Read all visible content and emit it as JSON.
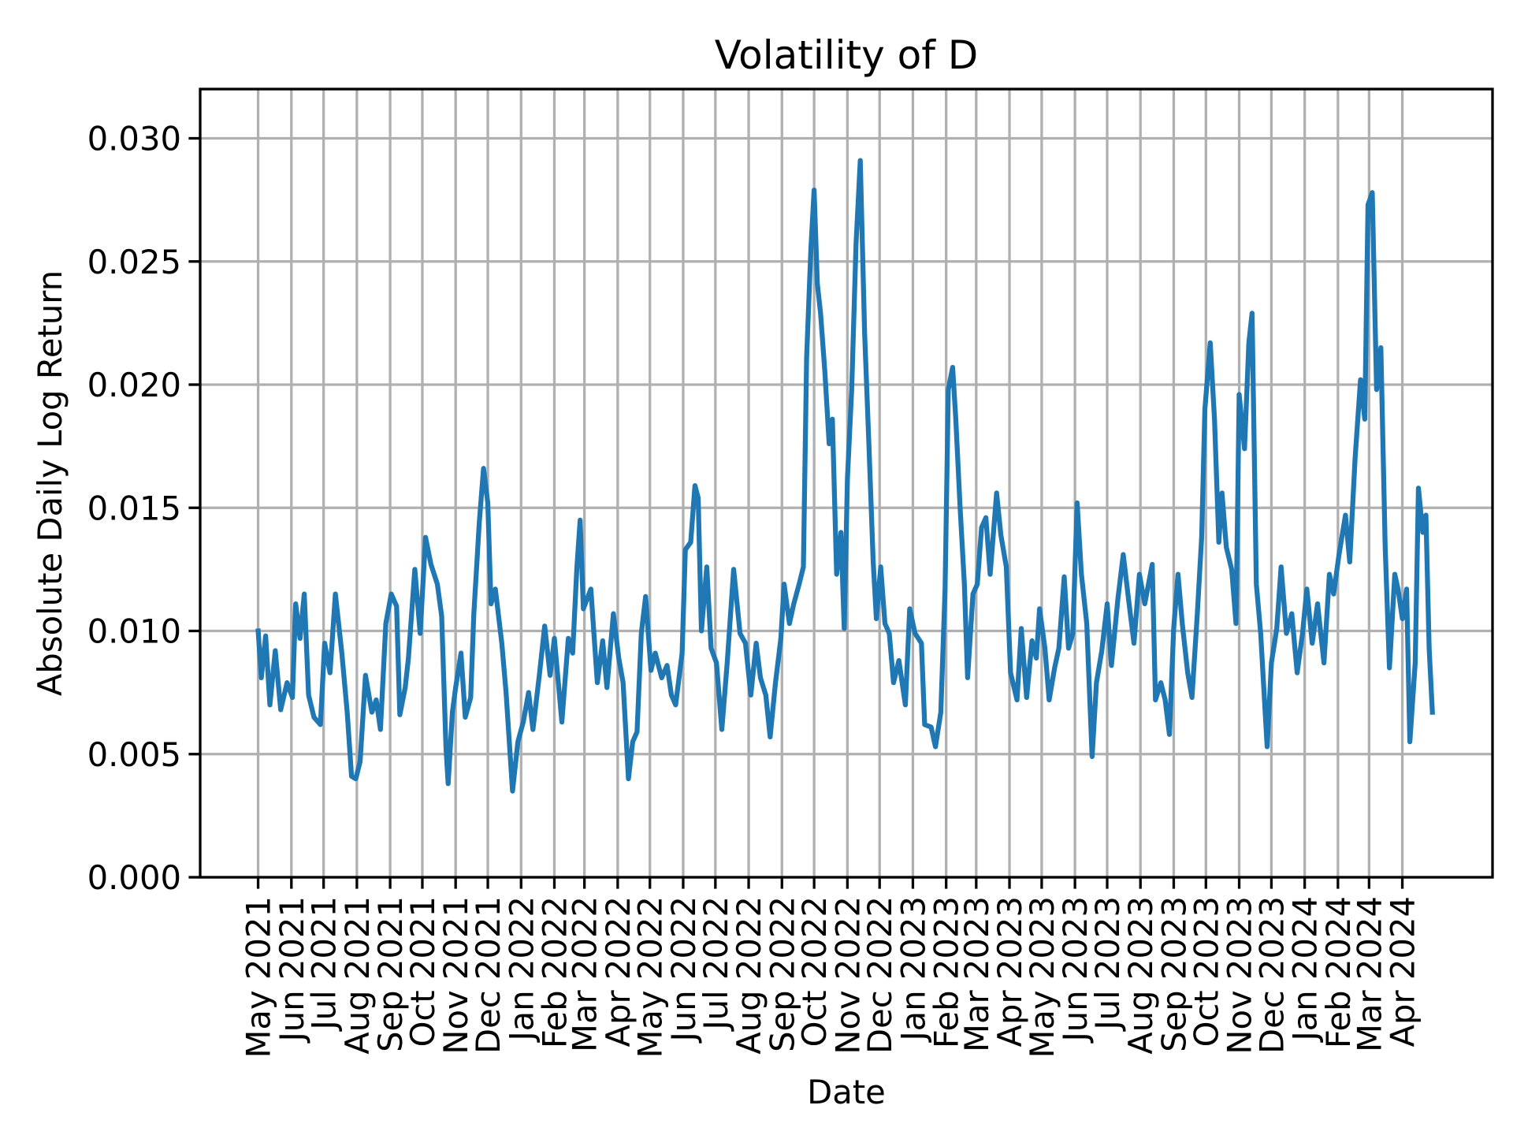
{
  "chart_data": {
    "type": "line",
    "title": "Volatility of D",
    "xlabel": "Date",
    "ylabel": "Absolute Daily Log Return",
    "xlim": [
      "2021-03-08",
      "2024-06-24"
    ],
    "ylim": [
      0,
      0.032
    ],
    "yticks": [
      0,
      0.005,
      0.01,
      0.015,
      0.02,
      0.025,
      0.03
    ],
    "ytick_labels": [
      "0.000",
      "0.005",
      "0.010",
      "0.015",
      "0.020",
      "0.025",
      "0.030"
    ],
    "xticks": [
      "2021-05-01",
      "2021-06-01",
      "2021-07-01",
      "2021-08-01",
      "2021-09-01",
      "2021-10-01",
      "2021-11-01",
      "2021-12-01",
      "2022-01-01",
      "2022-02-01",
      "2022-03-01",
      "2022-04-01",
      "2022-05-01",
      "2022-06-01",
      "2022-07-01",
      "2022-08-01",
      "2022-09-01",
      "2022-10-01",
      "2022-11-01",
      "2022-12-01",
      "2023-01-01",
      "2023-02-01",
      "2023-03-01",
      "2023-04-01",
      "2023-05-01",
      "2023-06-01",
      "2023-07-01",
      "2023-08-01",
      "2023-09-01",
      "2023-10-01",
      "2023-11-01",
      "2023-12-01",
      "2024-01-01",
      "2024-02-01",
      "2024-03-01",
      "2024-04-01"
    ],
    "xtick_labels": [
      "May 2021",
      "Jun 2021",
      "Jul 2021",
      "Aug 2021",
      "Sep 2021",
      "Oct 2021",
      "Nov 2021",
      "Dec 2021",
      "Jan 2022",
      "Feb 2022",
      "Mar 2022",
      "Apr 2022",
      "May 2022",
      "Jun 2022",
      "Jul 2022",
      "Aug 2022",
      "Sep 2022",
      "Oct 2022",
      "Nov 2022",
      "Dec 2022",
      "Jan 2023",
      "Feb 2023",
      "Mar 2023",
      "Apr 2023",
      "May 2023",
      "Jun 2023",
      "Jul 2023",
      "Aug 2023",
      "Sep 2023",
      "Oct 2023",
      "Nov 2023",
      "Dec 2023",
      "Jan 2024",
      "Feb 2024",
      "Mar 2024",
      "Apr 2024"
    ],
    "grid": true,
    "line_color": "#1f77b4",
    "grid_color": "#b0b0b0",
    "series": [
      {
        "points": [
          [
            "2021-05-01",
            0.01
          ],
          [
            "2021-05-04",
            0.0081
          ],
          [
            "2021-05-08",
            0.0098
          ],
          [
            "2021-05-12",
            0.007
          ],
          [
            "2021-05-17",
            0.0092
          ],
          [
            "2021-05-22",
            0.0068
          ],
          [
            "2021-05-28",
            0.0079
          ],
          [
            "2021-06-02",
            0.0073
          ],
          [
            "2021-06-05",
            0.0111
          ],
          [
            "2021-06-09",
            0.0097
          ],
          [
            "2021-06-13",
            0.0115
          ],
          [
            "2021-06-17",
            0.0074
          ],
          [
            "2021-06-22",
            0.0065
          ],
          [
            "2021-06-28",
            0.0062
          ],
          [
            "2021-07-02",
            0.0095
          ],
          [
            "2021-07-07",
            0.0083
          ],
          [
            "2021-07-12",
            0.0115
          ],
          [
            "2021-07-18",
            0.0091
          ],
          [
            "2021-07-23",
            0.0067
          ],
          [
            "2021-07-27",
            0.0041
          ],
          [
            "2021-07-31",
            0.004
          ],
          [
            "2021-08-04",
            0.0047
          ],
          [
            "2021-08-09",
            0.0082
          ],
          [
            "2021-08-15",
            0.0067
          ],
          [
            "2021-08-19",
            0.0072
          ],
          [
            "2021-08-23",
            0.006
          ],
          [
            "2021-08-28",
            0.0103
          ],
          [
            "2021-09-02",
            0.0115
          ],
          [
            "2021-09-07",
            0.011
          ],
          [
            "2021-09-10",
            0.0066
          ],
          [
            "2021-09-15",
            0.0077
          ],
          [
            "2021-09-18",
            0.0089
          ],
          [
            "2021-09-24",
            0.0125
          ],
          [
            "2021-09-29",
            0.0099
          ],
          [
            "2021-10-04",
            0.0138
          ],
          [
            "2021-10-09",
            0.0127
          ],
          [
            "2021-10-15",
            0.0119
          ],
          [
            "2021-10-19",
            0.0106
          ],
          [
            "2021-10-23",
            0.0053
          ],
          [
            "2021-10-25",
            0.0038
          ],
          [
            "2021-10-29",
            0.0067
          ],
          [
            "2021-11-01",
            0.0077
          ],
          [
            "2021-11-06",
            0.0091
          ],
          [
            "2021-11-10",
            0.0065
          ],
          [
            "2021-11-15",
            0.0073
          ],
          [
            "2021-11-18",
            0.0107
          ],
          [
            "2021-11-23",
            0.0144
          ],
          [
            "2021-11-27",
            0.0166
          ],
          [
            "2021-12-01",
            0.0152
          ],
          [
            "2021-12-04",
            0.0111
          ],
          [
            "2021-12-08",
            0.0117
          ],
          [
            "2021-12-14",
            0.0095
          ],
          [
            "2021-12-18",
            0.0075
          ],
          [
            "2021-12-24",
            0.0035
          ],
          [
            "2021-12-29",
            0.0055
          ],
          [
            "2022-01-03",
            0.0063
          ],
          [
            "2022-01-08",
            0.0075
          ],
          [
            "2022-01-12",
            0.006
          ],
          [
            "2022-01-18",
            0.0082
          ],
          [
            "2022-01-23",
            0.0102
          ],
          [
            "2022-01-28",
            0.0082
          ],
          [
            "2022-02-01",
            0.0097
          ],
          [
            "2022-02-08",
            0.0063
          ],
          [
            "2022-02-14",
            0.0097
          ],
          [
            "2022-02-18",
            0.0091
          ],
          [
            "2022-02-22",
            0.0126
          ],
          [
            "2022-02-25",
            0.0145
          ],
          [
            "2022-02-28",
            0.0109
          ],
          [
            "2022-03-07",
            0.0117
          ],
          [
            "2022-03-13",
            0.0079
          ],
          [
            "2022-03-18",
            0.0096
          ],
          [
            "2022-03-22",
            0.0077
          ],
          [
            "2022-03-28",
            0.0107
          ],
          [
            "2022-04-02",
            0.0089
          ],
          [
            "2022-04-06",
            0.0079
          ],
          [
            "2022-04-11",
            0.004
          ],
          [
            "2022-04-15",
            0.0055
          ],
          [
            "2022-04-19",
            0.0059
          ],
          [
            "2022-04-23",
            0.0099
          ],
          [
            "2022-04-27",
            0.0114
          ],
          [
            "2022-05-02",
            0.0084
          ],
          [
            "2022-05-06",
            0.0091
          ],
          [
            "2022-05-12",
            0.0081
          ],
          [
            "2022-05-17",
            0.0086
          ],
          [
            "2022-05-21",
            0.0074
          ],
          [
            "2022-05-25",
            0.007
          ],
          [
            "2022-05-31",
            0.0091
          ],
          [
            "2022-06-03",
            0.0133
          ],
          [
            "2022-06-08",
            0.0136
          ],
          [
            "2022-06-12",
            0.0159
          ],
          [
            "2022-06-15",
            0.0154
          ],
          [
            "2022-06-18",
            0.01
          ],
          [
            "2022-06-23",
            0.0126
          ],
          [
            "2022-06-27",
            0.0093
          ],
          [
            "2022-07-02",
            0.0087
          ],
          [
            "2022-07-07",
            0.006
          ],
          [
            "2022-07-12",
            0.0087
          ],
          [
            "2022-07-18",
            0.0125
          ],
          [
            "2022-07-24",
            0.0099
          ],
          [
            "2022-07-29",
            0.0095
          ],
          [
            "2022-08-03",
            0.0074
          ],
          [
            "2022-08-08",
            0.0095
          ],
          [
            "2022-08-12",
            0.0081
          ],
          [
            "2022-08-17",
            0.0074
          ],
          [
            "2022-08-21",
            0.0057
          ],
          [
            "2022-08-26",
            0.0079
          ],
          [
            "2022-08-31",
            0.0097
          ],
          [
            "2022-09-03",
            0.0119
          ],
          [
            "2022-09-08",
            0.0103
          ],
          [
            "2022-09-12",
            0.0111
          ],
          [
            "2022-09-17",
            0.0119
          ],
          [
            "2022-09-21",
            0.0126
          ],
          [
            "2022-09-24",
            0.0211
          ],
          [
            "2022-09-28",
            0.0255
          ],
          [
            "2022-10-01",
            0.0279
          ],
          [
            "2022-10-04",
            0.0241
          ],
          [
            "2022-10-07",
            0.0229
          ],
          [
            "2022-10-11",
            0.0205
          ],
          [
            "2022-10-15",
            0.0176
          ],
          [
            "2022-10-18",
            0.0186
          ],
          [
            "2022-10-22",
            0.0123
          ],
          [
            "2022-10-26",
            0.014
          ],
          [
            "2022-10-29",
            0.0101
          ],
          [
            "2022-11-01",
            0.0162
          ],
          [
            "2022-11-05",
            0.0198
          ],
          [
            "2022-11-09",
            0.0257
          ],
          [
            "2022-11-13",
            0.0291
          ],
          [
            "2022-11-17",
            0.0221
          ],
          [
            "2022-11-21",
            0.0176
          ],
          [
            "2022-11-25",
            0.0128
          ],
          [
            "2022-11-28",
            0.0105
          ],
          [
            "2022-12-02",
            0.0126
          ],
          [
            "2022-12-06",
            0.0103
          ],
          [
            "2022-12-10",
            0.0099
          ],
          [
            "2022-12-14",
            0.0079
          ],
          [
            "2022-12-19",
            0.0088
          ],
          [
            "2022-12-25",
            0.007
          ],
          [
            "2022-12-29",
            0.0109
          ],
          [
            "2023-01-03",
            0.0099
          ],
          [
            "2023-01-09",
            0.0095
          ],
          [
            "2023-01-12",
            0.0062
          ],
          [
            "2023-01-18",
            0.0061
          ],
          [
            "2023-01-22",
            0.0053
          ],
          [
            "2023-01-27",
            0.0067
          ],
          [
            "2023-01-31",
            0.0117
          ],
          [
            "2023-02-03",
            0.0198
          ],
          [
            "2023-02-07",
            0.0207
          ],
          [
            "2023-02-10",
            0.0186
          ],
          [
            "2023-02-14",
            0.015
          ],
          [
            "2023-02-18",
            0.0119
          ],
          [
            "2023-02-21",
            0.0081
          ],
          [
            "2023-02-26",
            0.0115
          ],
          [
            "2023-03-02",
            0.0119
          ],
          [
            "2023-03-06",
            0.0142
          ],
          [
            "2023-03-10",
            0.0146
          ],
          [
            "2023-03-14",
            0.0123
          ],
          [
            "2023-03-20",
            0.0156
          ],
          [
            "2023-03-24",
            0.0139
          ],
          [
            "2023-03-29",
            0.0126
          ],
          [
            "2023-04-02",
            0.0083
          ],
          [
            "2023-04-08",
            0.0072
          ],
          [
            "2023-04-12",
            0.0101
          ],
          [
            "2023-04-17",
            0.0073
          ],
          [
            "2023-04-22",
            0.0096
          ],
          [
            "2023-04-26",
            0.0089
          ],
          [
            "2023-04-29",
            0.0109
          ],
          [
            "2023-05-04",
            0.0093
          ],
          [
            "2023-05-08",
            0.0072
          ],
          [
            "2023-05-13",
            0.0085
          ],
          [
            "2023-05-17",
            0.0093
          ],
          [
            "2023-05-22",
            0.0122
          ],
          [
            "2023-05-26",
            0.0093
          ],
          [
            "2023-05-30",
            0.0099
          ],
          [
            "2023-06-03",
            0.0152
          ],
          [
            "2023-06-07",
            0.0123
          ],
          [
            "2023-06-12",
            0.0103
          ],
          [
            "2023-06-17",
            0.0049
          ],
          [
            "2023-06-21",
            0.0079
          ],
          [
            "2023-06-26",
            0.0092
          ],
          [
            "2023-07-01",
            0.0111
          ],
          [
            "2023-07-05",
            0.0086
          ],
          [
            "2023-07-11",
            0.0113
          ],
          [
            "2023-07-16",
            0.0131
          ],
          [
            "2023-07-22",
            0.0109
          ],
          [
            "2023-07-26",
            0.0095
          ],
          [
            "2023-07-31",
            0.0123
          ],
          [
            "2023-08-05",
            0.0111
          ],
          [
            "2023-08-12",
            0.0127
          ],
          [
            "2023-08-15",
            0.0072
          ],
          [
            "2023-08-20",
            0.0079
          ],
          [
            "2023-08-24",
            0.0072
          ],
          [
            "2023-08-28",
            0.0058
          ],
          [
            "2023-09-01",
            0.0101
          ],
          [
            "2023-09-05",
            0.0123
          ],
          [
            "2023-09-09",
            0.0103
          ],
          [
            "2023-09-14",
            0.0083
          ],
          [
            "2023-09-18",
            0.0073
          ],
          [
            "2023-09-23",
            0.0107
          ],
          [
            "2023-09-27",
            0.0138
          ],
          [
            "2023-09-30",
            0.019
          ],
          [
            "2023-10-03",
            0.0206
          ],
          [
            "2023-10-05",
            0.0217
          ],
          [
            "2023-10-09",
            0.0186
          ],
          [
            "2023-10-13",
            0.0136
          ],
          [
            "2023-10-16",
            0.0156
          ],
          [
            "2023-10-20",
            0.0134
          ],
          [
            "2023-10-25",
            0.0125
          ],
          [
            "2023-10-29",
            0.0103
          ],
          [
            "2023-11-01",
            0.0196
          ],
          [
            "2023-11-06",
            0.0174
          ],
          [
            "2023-11-10",
            0.0217
          ],
          [
            "2023-11-13",
            0.0229
          ],
          [
            "2023-11-17",
            0.0119
          ],
          [
            "2023-11-21",
            0.0099
          ],
          [
            "2023-11-27",
            0.0053
          ],
          [
            "2023-12-01",
            0.0087
          ],
          [
            "2023-12-06",
            0.0101
          ],
          [
            "2023-12-10",
            0.0126
          ],
          [
            "2023-12-15",
            0.0099
          ],
          [
            "2023-12-20",
            0.0107
          ],
          [
            "2023-12-25",
            0.0083
          ],
          [
            "2023-12-30",
            0.0099
          ],
          [
            "2024-01-03",
            0.0117
          ],
          [
            "2024-01-08",
            0.0095
          ],
          [
            "2024-01-13",
            0.0111
          ],
          [
            "2024-01-19",
            0.0087
          ],
          [
            "2024-01-24",
            0.0123
          ],
          [
            "2024-01-28",
            0.0115
          ],
          [
            "2024-02-02",
            0.0131
          ],
          [
            "2024-02-08",
            0.0147
          ],
          [
            "2024-02-12",
            0.0128
          ],
          [
            "2024-02-17",
            0.017
          ],
          [
            "2024-02-22",
            0.0202
          ],
          [
            "2024-02-26",
            0.0186
          ],
          [
            "2024-02-29",
            0.0273
          ],
          [
            "2024-03-04",
            0.0278
          ],
          [
            "2024-03-08",
            0.0198
          ],
          [
            "2024-03-12",
            0.0215
          ],
          [
            "2024-03-16",
            0.0134
          ],
          [
            "2024-03-20",
            0.0085
          ],
          [
            "2024-03-25",
            0.0123
          ],
          [
            "2024-03-28",
            0.0117
          ],
          [
            "2024-04-01",
            0.0105
          ],
          [
            "2024-04-05",
            0.0117
          ],
          [
            "2024-04-08",
            0.0055
          ],
          [
            "2024-04-13",
            0.0087
          ],
          [
            "2024-04-16",
            0.0158
          ],
          [
            "2024-04-20",
            0.014
          ],
          [
            "2024-04-23",
            0.0147
          ],
          [
            "2024-04-26",
            0.0093
          ],
          [
            "2024-04-29",
            0.0067
          ]
        ]
      }
    ]
  }
}
